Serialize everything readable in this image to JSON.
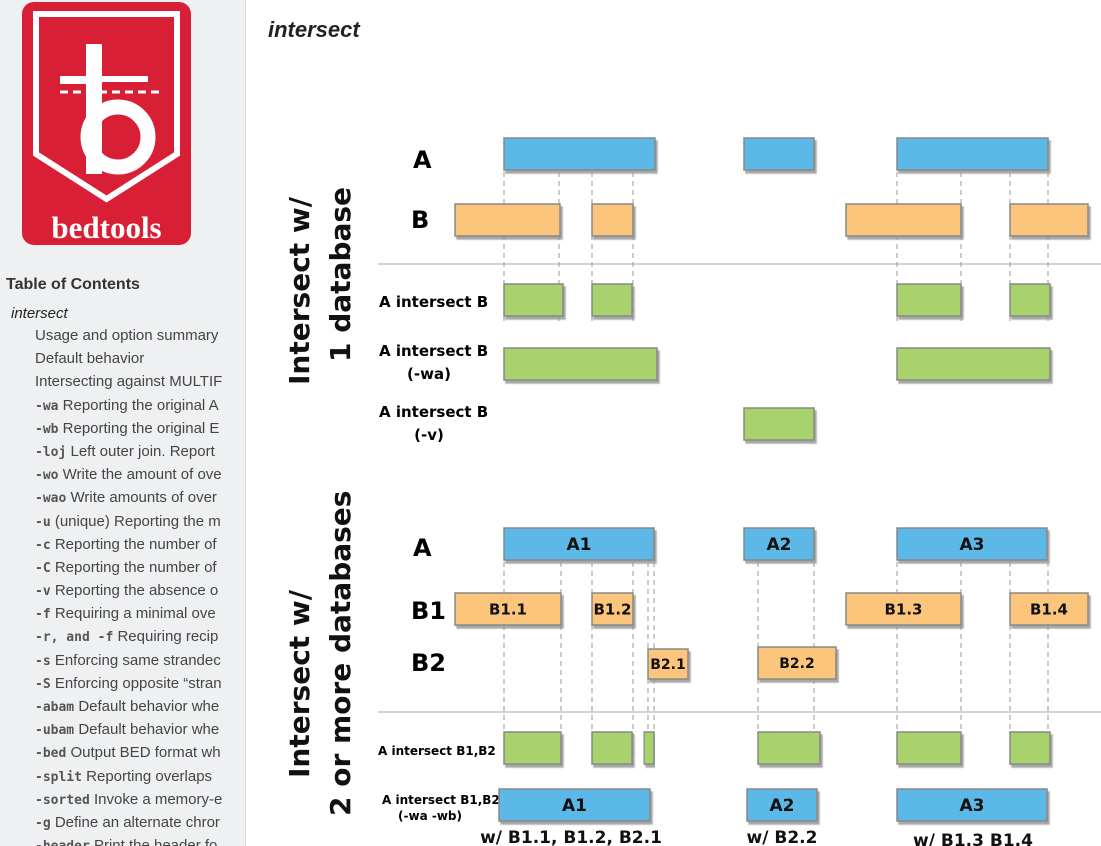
{
  "logo": {
    "text": "bedtools",
    "brand_color": "#d91f35"
  },
  "sidebar": {
    "toc_title": "Table of Contents",
    "current_section": "intersect",
    "items": [
      {
        "flag": "",
        "text": "Usage and option summary"
      },
      {
        "flag": "",
        "text": "Default behavior"
      },
      {
        "flag": "",
        "text": "Intersecting against MULTIF"
      },
      {
        "flag": "-wa",
        "text": "Reporting the original A"
      },
      {
        "flag": "-wb",
        "text": "Reporting the original E"
      },
      {
        "flag": "-loj",
        "text": "Left outer join. Report"
      },
      {
        "flag": "-wo",
        "text": "Write the amount of ove"
      },
      {
        "flag": "-wao",
        "text": "Write amounts of over"
      },
      {
        "flag": "-u",
        "text": "(unique) Reporting the m"
      },
      {
        "flag": "-c",
        "text": "Reporting the number of"
      },
      {
        "flag": "-C",
        "text": "Reporting the number of"
      },
      {
        "flag": "-v",
        "text": "Reporting the absence o"
      },
      {
        "flag": "-f",
        "text": "Requiring a minimal ove"
      },
      {
        "flag": "-r, and -f",
        "text": "Requiring recip"
      },
      {
        "flag": "-s",
        "text": "Enforcing same strandec"
      },
      {
        "flag": "-S",
        "text": "Enforcing opposite “stran"
      },
      {
        "flag": "-abam",
        "text": "Default behavior whe"
      },
      {
        "flag": "-ubam",
        "text": "Default behavior whe"
      },
      {
        "flag": "-bed",
        "text": "Output BED format wh"
      },
      {
        "flag": "-split",
        "text": "Reporting overlaps"
      },
      {
        "flag": "-sorted",
        "text": "Invoke a memory-e"
      },
      {
        "flag": "-g",
        "text": "Define an alternate chror"
      },
      {
        "flag": "-header",
        "text": "Print the header fo"
      }
    ]
  },
  "page": {
    "title": "intersect"
  },
  "diagram": {
    "colors": {
      "a": "#5bb8e6",
      "b": "#fcc57c",
      "result": "#a8d36c",
      "divider": "#aaaaaa"
    },
    "section1": {
      "title_line1": "Intersect w/",
      "title_line2": "1 database",
      "row_a": "A",
      "row_b": "B",
      "res1": "A intersect B",
      "res2_line1": "A intersect B",
      "res2_line2": "(-wa)",
      "res3_line1": "A intersect B",
      "res3_line2": "(-v)"
    },
    "section2": {
      "title_line1": "Intersect w/",
      "title_line2": "2 or more databases",
      "row_a": "A",
      "row_b1": "B1",
      "row_b2": "B2",
      "res1": "A intersect B1,B2",
      "res2_line1": "A intersect B1,B2",
      "res2_line2": "(-wa -wb)",
      "a_labels": [
        "A1",
        "A2",
        "A3"
      ],
      "b1_labels": [
        "B1.1",
        "B1.2",
        "B1.3",
        "B1.4"
      ],
      "b2_labels": [
        "B2.1",
        "B2.2"
      ],
      "wa_labels": [
        "A1",
        "A2",
        "A3"
      ],
      "w_labels": [
        "w/ B1.1, B1.2, B2.1",
        "w/ B2.2",
        "w/ B1.3 B1.4"
      ]
    }
  }
}
